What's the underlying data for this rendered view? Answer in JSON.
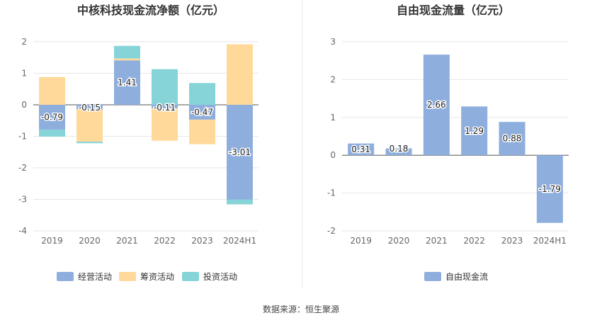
{
  "footer": {
    "source": "数据来源：恒生聚源"
  },
  "colors": {
    "operating": "#8eaedd",
    "financing": "#ffd999",
    "investing": "#86d4d8",
    "fcf": "#8eaedd",
    "axis": "#666666",
    "grid": "#e6e6e6",
    "title": "#333333"
  },
  "chart_data": [
    {
      "type": "bar",
      "stacked": true,
      "title": "中核科技现金流净额（亿元）",
      "categories": [
        "2019",
        "2020",
        "2021",
        "2022",
        "2023",
        "2024H1"
      ],
      "ylim": [
        -4,
        2
      ],
      "yticks": [
        2,
        1,
        0,
        -1,
        -2,
        -3,
        -4
      ],
      "legend_position": "bottom",
      "grid": true,
      "series": [
        {
          "name": "经营活动",
          "values": [
            -0.79,
            -0.15,
            1.41,
            -0.11,
            -0.47,
            -3.01
          ],
          "labels": [
            "-0.79",
            "-0.15",
            "1.41",
            "-0.11",
            "-0.47",
            "-3.01"
          ]
        },
        {
          "name": "筹资活动",
          "values": [
            0.88,
            -1.02,
            0.06,
            -1.03,
            -0.78,
            1.92
          ]
        },
        {
          "name": "投资活动",
          "values": [
            -0.22,
            -0.05,
            0.4,
            1.13,
            0.69,
            -0.15
          ]
        }
      ]
    },
    {
      "type": "bar",
      "title": "自由现金流量（亿元）",
      "categories": [
        "2019",
        "2020",
        "2021",
        "2022",
        "2023",
        "2024H1"
      ],
      "ylim": [
        -2,
        3
      ],
      "yticks": [
        3,
        2,
        1,
        0,
        -1,
        -2
      ],
      "legend_position": "bottom",
      "grid": true,
      "series": [
        {
          "name": "自由现金流",
          "values": [
            0.31,
            0.18,
            2.66,
            1.29,
            0.88,
            -1.79
          ],
          "labels": [
            "0.31",
            "0.18",
            "2.66",
            "1.29",
            "0.88",
            "-1.79"
          ]
        }
      ]
    }
  ]
}
